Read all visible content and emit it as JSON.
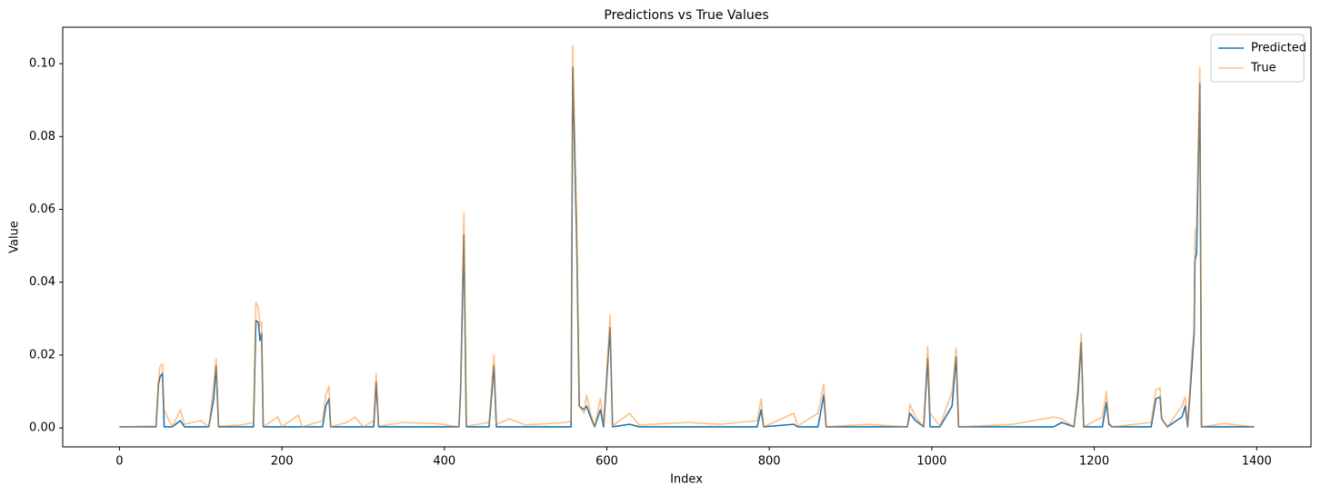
{
  "chart_data": {
    "type": "line",
    "title": "Predictions vs True Values",
    "x_label": "Index",
    "y_label": "Value",
    "x": [
      0,
      45,
      48,
      50,
      53,
      55,
      60,
      65,
      75,
      80,
      100,
      110,
      116,
      119,
      122,
      150,
      165,
      168,
      171,
      173,
      175,
      177,
      195,
      200,
      220,
      225,
      250,
      254,
      258,
      260,
      280,
      290,
      300,
      313,
      316,
      319,
      350,
      390,
      418,
      420,
      424,
      427,
      455,
      461,
      464,
      480,
      500,
      550,
      556,
      558,
      563,
      566,
      572,
      575,
      580,
      585,
      592,
      596,
      604,
      607,
      628,
      640,
      700,
      740,
      785,
      790,
      793,
      830,
      835,
      845,
      860,
      867,
      870,
      920,
      970,
      973,
      980,
      990,
      995,
      998,
      1010,
      1025,
      1030,
      1033,
      1100,
      1150,
      1160,
      1175,
      1180,
      1184,
      1187,
      1210,
      1215,
      1218,
      1222,
      1270,
      1276,
      1281,
      1283,
      1290,
      1308,
      1312,
      1315,
      1320,
      1323,
      1324,
      1326,
      1330,
      1332,
      1360,
      1397
    ],
    "series": [
      {
        "name": "Predicted",
        "color": "#1f77b4",
        "opacity": 1,
        "values": [
          0.0003,
          0.0003,
          0.012,
          0.014,
          0.015,
          0.0003,
          0.0003,
          0.0003,
          0.002,
          0.0003,
          0.0003,
          0.0003,
          0.008,
          0.017,
          0.0003,
          0.0003,
          0.0003,
          0.0295,
          0.029,
          0.024,
          0.026,
          0.0003,
          0.0003,
          0.0003,
          0.0003,
          0.0003,
          0.0003,
          0.006,
          0.008,
          0.0003,
          0.0003,
          0.0003,
          0.0003,
          0.0003,
          0.0125,
          0.0003,
          0.0003,
          0.0003,
          0.0003,
          0.0105,
          0.053,
          0.0003,
          0.0003,
          0.017,
          0.0003,
          0.0003,
          0.0003,
          0.0003,
          0.0003,
          0.099,
          0.05,
          0.006,
          0.005,
          0.006,
          0.003,
          0.0003,
          0.005,
          0.0003,
          0.0275,
          0.0003,
          0.001,
          0.0003,
          0.0003,
          0.0003,
          0.0003,
          0.005,
          0.0003,
          0.001,
          0.0003,
          0.0003,
          0.0003,
          0.009,
          0.0003,
          0.0003,
          0.0003,
          0.004,
          0.002,
          0.0003,
          0.019,
          0.0003,
          0.0003,
          0.006,
          0.0195,
          0.0003,
          0.0003,
          0.0003,
          0.0015,
          0.0003,
          0.0095,
          0.0235,
          0.0003,
          0.0003,
          0.007,
          0.001,
          0.0003,
          0.0003,
          0.008,
          0.0085,
          0.0025,
          0.0003,
          0.003,
          0.006,
          0.0003,
          0.016,
          0.026,
          0.046,
          0.048,
          0.0945,
          0.0003,
          0.0003,
          0.0003
        ]
      },
      {
        "name": "True",
        "color": "#ff7f0e",
        "opacity": 0.5,
        "values": [
          0.0003,
          0.0005,
          0.013,
          0.017,
          0.0175,
          0.005,
          0.0025,
          0.0003,
          0.005,
          0.001,
          0.002,
          0.0003,
          0.012,
          0.019,
          0.0005,
          0.0008,
          0.0015,
          0.0345,
          0.033,
          0.028,
          0.029,
          0.0003,
          0.003,
          0.0003,
          0.0035,
          0.0003,
          0.002,
          0.009,
          0.0115,
          0.0003,
          0.0015,
          0.003,
          0.0003,
          0.002,
          0.015,
          0.0005,
          0.0015,
          0.0012,
          0.0003,
          0.012,
          0.059,
          0.0005,
          0.0015,
          0.02,
          0.001,
          0.0025,
          0.0008,
          0.0015,
          0.002,
          0.105,
          0.055,
          0.006,
          0.004,
          0.009,
          0.004,
          0.0005,
          0.008,
          0.001,
          0.031,
          0.0005,
          0.004,
          0.0008,
          0.0015,
          0.001,
          0.002,
          0.008,
          0.0003,
          0.004,
          0.0005,
          0.002,
          0.004,
          0.012,
          0.0003,
          0.001,
          0.0003,
          0.0065,
          0.003,
          0.0003,
          0.0225,
          0.004,
          0.0005,
          0.01,
          0.022,
          0.0003,
          0.001,
          0.003,
          0.0025,
          0.0003,
          0.012,
          0.026,
          0.0003,
          0.003,
          0.01,
          0.0015,
          0.0003,
          0.0015,
          0.0105,
          0.011,
          0.0025,
          0.0003,
          0.006,
          0.0085,
          0.0003,
          0.02,
          0.027,
          0.054,
          0.055,
          0.099,
          0.0003,
          0.0012,
          0.0003
        ]
      }
    ],
    "xlim": [
      -69.85,
      1466.85
    ],
    "ylim": [
      -0.0052,
      0.11
    ],
    "xticks": [
      0,
      200,
      400,
      600,
      800,
      1000,
      1200,
      1400
    ],
    "yticks": [
      {
        "value": 0,
        "label": "0.00"
      },
      0.02,
      0.04,
      0.06,
      0.08,
      {
        "value": 0.1,
        "label": "0.10"
      }
    ],
    "legend": "upper right",
    "grid": false
  }
}
